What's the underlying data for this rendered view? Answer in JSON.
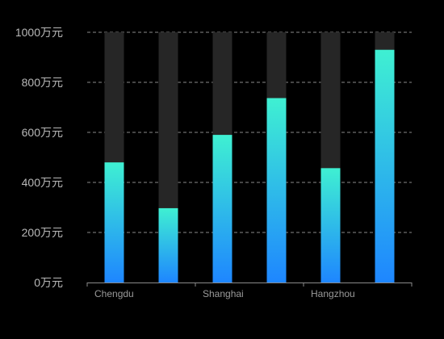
{
  "chart_data": {
    "type": "bar",
    "title": "",
    "xlabel": "",
    "ylabel": "",
    "categories": [
      "Chengdu",
      "",
      "Shanghai",
      "",
      "Hangzhou",
      ""
    ],
    "values": [
      480,
      297,
      590,
      737,
      457,
      930
    ],
    "background_max": 1000,
    "ylim": [
      0,
      1000
    ],
    "yticks": [
      0,
      200,
      400,
      600,
      800,
      1000
    ],
    "ytick_unit": "万元",
    "grid": true,
    "colors": {
      "bar_top": "#3ff0d2",
      "bar_bottom": "#1e86ff",
      "background_bar": "#262626",
      "grid": "#8a8a8a",
      "axis": "#8a8a8a",
      "page_bg": "#000000"
    }
  }
}
